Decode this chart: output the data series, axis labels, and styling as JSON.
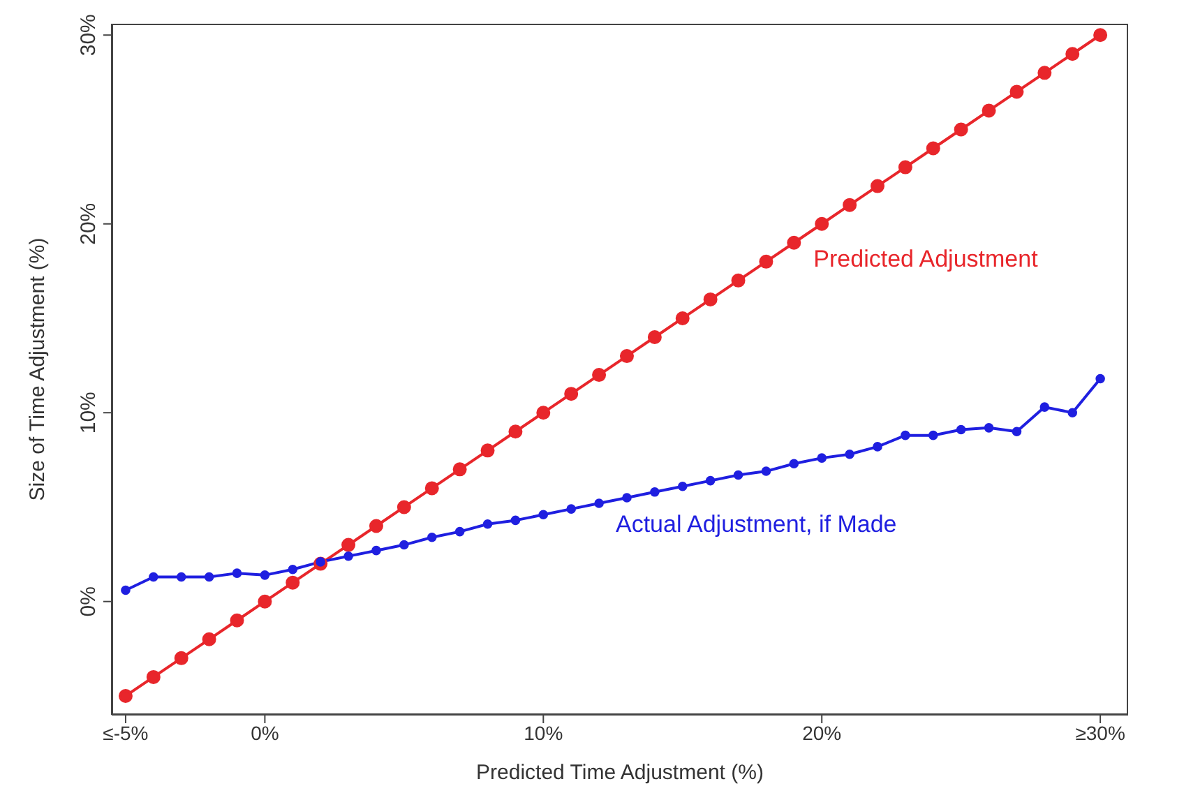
{
  "chart_data": {
    "type": "line",
    "xlabel": "Predicted Time Adjustment (%)",
    "ylabel": "Size of Time Adjustment (%)",
    "x": [
      -5,
      -4,
      -3,
      -2,
      -1,
      0,
      1,
      2,
      3,
      4,
      5,
      6,
      7,
      8,
      9,
      10,
      11,
      12,
      13,
      14,
      15,
      16,
      17,
      18,
      19,
      20,
      21,
      22,
      23,
      24,
      25,
      26,
      27,
      28,
      29,
      30
    ],
    "series": [
      {
        "name": "Predicted Adjustment",
        "color": "#e8262b",
        "values": [
          -5,
          -4,
          -3,
          -2,
          -1,
          0,
          1,
          2,
          3,
          4,
          5,
          6,
          7,
          8,
          9,
          10,
          11,
          12,
          13,
          14,
          15,
          16,
          17,
          18,
          19,
          20,
          21,
          22,
          23,
          24,
          25,
          26,
          27,
          28,
          29,
          30
        ]
      },
      {
        "name": "Actual Adjustment, if Made",
        "color": "#1f1fe0",
        "values": [
          0.6,
          1.3,
          1.3,
          1.3,
          1.5,
          1.4,
          1.7,
          2.1,
          2.4,
          2.7,
          3.0,
          3.4,
          3.7,
          4.1,
          4.3,
          4.6,
          4.9,
          5.2,
          5.5,
          5.8,
          6.1,
          6.4,
          6.7,
          6.9,
          7.3,
          7.6,
          7.8,
          8.2,
          8.8,
          8.8,
          9.1,
          9.2,
          9.0,
          10.3,
          10.0,
          11.8
        ]
      }
    ],
    "xlim": [
      -5.5,
      31
    ],
    "ylim": [
      -6,
      30.6
    ],
    "xticks": [
      {
        "value": -5,
        "label": "≤-5%"
      },
      {
        "value": 0,
        "label": "0%"
      },
      {
        "value": 10,
        "label": "10%"
      },
      {
        "value": 20,
        "label": "20%"
      },
      {
        "value": 30,
        "label": "≥30%"
      }
    ],
    "yticks": [
      {
        "value": 0,
        "label": "0%"
      },
      {
        "value": 10,
        "label": "10%"
      },
      {
        "value": 20,
        "label": "20%"
      },
      {
        "value": 30,
        "label": "30%"
      }
    ],
    "grid": false,
    "marker": "circle",
    "line_style": "solid"
  }
}
